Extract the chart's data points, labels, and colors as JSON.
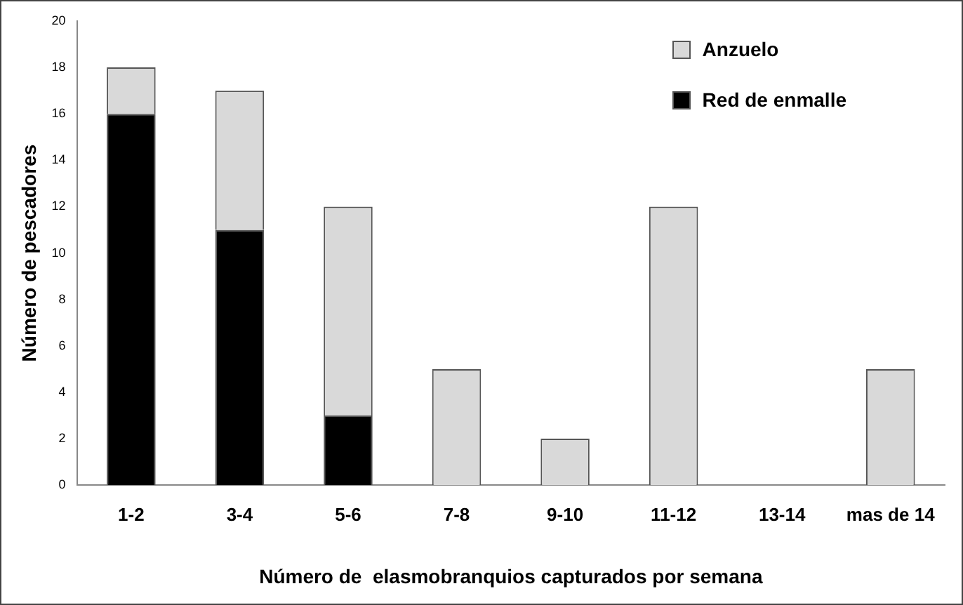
{
  "chart_data": {
    "type": "bar",
    "stacked": true,
    "xlabel": "Número de  elasmobranquios capturados por semana",
    "ylabel": "Número de pescadores",
    "categories": [
      "1-2",
      "3-4",
      "5-6",
      "7-8",
      "9-10",
      "11-12",
      "13-14",
      "mas de 14"
    ],
    "series": [
      {
        "name": "Red de enmalle",
        "color": "#000000",
        "values": [
          16,
          11,
          3,
          0,
          0,
          0,
          0,
          0
        ]
      },
      {
        "name": "Anzuelo",
        "color": "#d9d9d9",
        "values": [
          2,
          6,
          9,
          5,
          2,
          12,
          0,
          5
        ]
      }
    ],
    "ylim": [
      0,
      20
    ],
    "yticks": [
      0,
      2,
      4,
      6,
      8,
      10,
      12,
      14,
      16,
      18,
      20
    ],
    "grid": false,
    "legend": "top right"
  }
}
